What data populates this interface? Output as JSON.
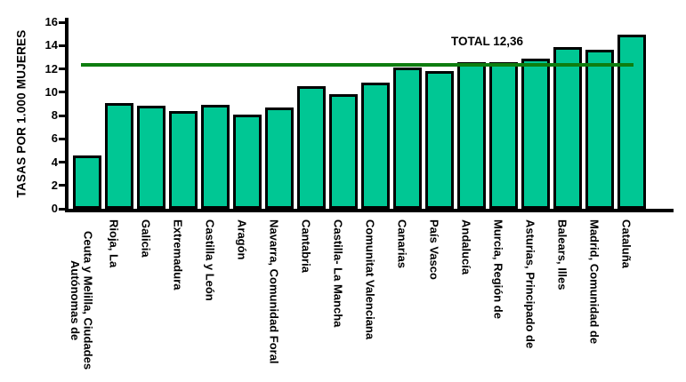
{
  "chart_data": {
    "type": "bar",
    "title": "",
    "xlabel": "",
    "ylabel": "TASAS POR 1.000 MUJERES",
    "ylim": [
      0,
      16
    ],
    "yticks": [
      0,
      2,
      4,
      6,
      8,
      10,
      12,
      14,
      16
    ],
    "grid": false,
    "legend_position": "none",
    "categories": [
      "Ceuta y Melilla, Ciudades Autónomas de",
      "Rioja, La",
      "Galicia",
      "Extremadura",
      "Castilla y León",
      "Aragón",
      "Navarra, Comunidad Foral",
      "Cantabria",
      "Castilla- La Mancha",
      "Comunitat Valenciana",
      "Canarias",
      "País Vasco",
      "Andalucía",
      "Murcia, Región de",
      "Asturias, Principado de",
      "Balears, Illes",
      "Madrid, Comunidad de",
      "Cataluña"
    ],
    "values": [
      4.6,
      9.1,
      8.8,
      8.4,
      8.9,
      8.1,
      8.7,
      10.5,
      9.8,
      10.8,
      12.1,
      11.8,
      12.6,
      12.6,
      12.9,
      13.9,
      13.6,
      14.9
    ],
    "reference_line": {
      "label": "TOTAL 12,36",
      "value": 12.36,
      "color": "#0E7D10"
    },
    "bar_color": "#00C794",
    "bar_border_color": "#000000",
    "axis_color": "#000000"
  }
}
